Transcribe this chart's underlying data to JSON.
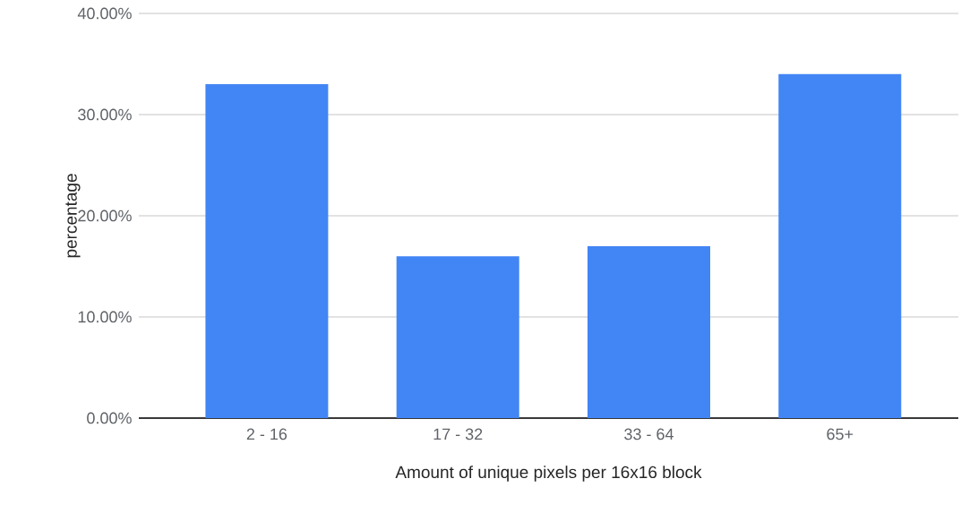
{
  "chart_data": {
    "type": "bar",
    "xlabel": "Amount of unique pixels per 16x16 block",
    "ylabel": "percentage",
    "categories": [
      "2 - 16",
      "17 - 32",
      "33 - 64",
      "65+"
    ],
    "values": [
      33,
      16,
      17,
      34
    ],
    "color": "#4285f4",
    "ylim": [
      0,
      40
    ],
    "yticks": [
      {
        "value": 0,
        "label": "0.00%"
      },
      {
        "value": 10,
        "label": "10.00%"
      },
      {
        "value": 20,
        "label": "20.00%"
      },
      {
        "value": 30,
        "label": "30.00%"
      },
      {
        "value": 40,
        "label": "40.00%"
      }
    ],
    "grid": "y"
  }
}
